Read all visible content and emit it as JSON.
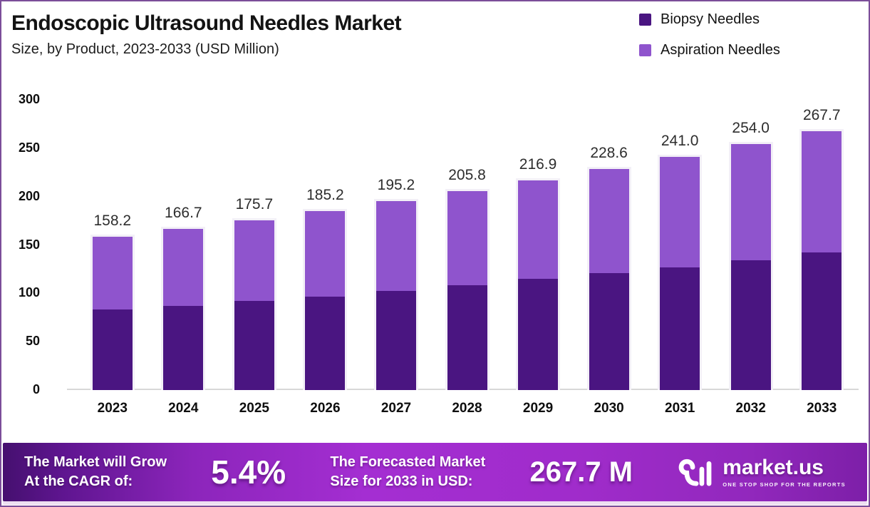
{
  "chart_data": {
    "type": "bar",
    "stacked": true,
    "title": "Endoscopic Ultrasound Needles Market",
    "subtitle": "Size, by Product, 2023-2033 (USD Million)",
    "categories": [
      "2023",
      "2024",
      "2025",
      "2026",
      "2027",
      "2028",
      "2029",
      "2030",
      "2031",
      "2032",
      "2033"
    ],
    "series": [
      {
        "name": "Biopsy Needles",
        "color": "#4a1581",
        "values": [
          83.1,
          86.9,
          92.1,
          96.9,
          102.6,
          108.0,
          114.9,
          120.6,
          127.1,
          134.2,
          142.0
        ]
      },
      {
        "name": "Aspiration Needles",
        "color": "#8f54cd",
        "values": [
          75.1,
          79.8,
          83.6,
          88.3,
          92.6,
          97.8,
          102.0,
          108.0,
          113.9,
          119.8,
          125.7
        ]
      }
    ],
    "totals": [
      158.2,
      166.7,
      175.7,
      185.2,
      195.2,
      205.8,
      216.9,
      228.6,
      241.0,
      254.0,
      267.7
    ],
    "ylim": [
      0,
      300
    ],
    "yticks": [
      0,
      50,
      100,
      150,
      200,
      250,
      300
    ],
    "grid": false,
    "legend_position": "top-right",
    "value_label_style": "total above each bar, one decimal"
  },
  "banner": {
    "left_label_line1": "The Market will Grow",
    "left_label_line2": "At the CAGR of:",
    "cagr_value": "5.4%",
    "right_label_line1": "The Forecasted Market",
    "right_label_line2": "Size for 2033 in USD:",
    "forecast_value": "267.7 M",
    "brand": "market.us",
    "brand_tagline": "ONE STOP SHOP FOR THE REPORTS"
  },
  "colors": {
    "frame_border": "#7b4e99",
    "axis_line": "#d8d8d8",
    "banner_gradient_start": "#45106f",
    "banner_gradient_mid": "#a42ed2",
    "banner_gradient_end": "#7d1fa8",
    "bar_halo": "#f3f0f7"
  }
}
